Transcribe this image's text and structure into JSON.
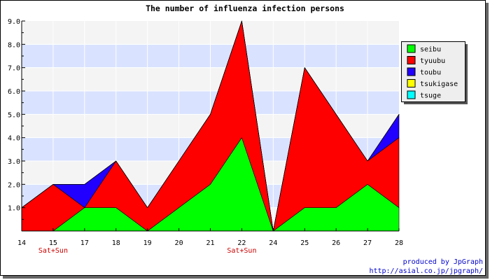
{
  "chart_data": {
    "type": "area",
    "stacked": true,
    "title": "The number of influenza infection persons",
    "x": [
      "14",
      "15",
      "17",
      "18",
      "19",
      "20",
      "21",
      "22",
      "24",
      "25",
      "26",
      "27",
      "28"
    ],
    "weekend_labels": [
      {
        "x": "15",
        "text": "Sat+Sun"
      },
      {
        "x": "22",
        "text": "Sat+Sun"
      }
    ],
    "ylim": [
      0,
      9
    ],
    "yticks": [
      "1.0",
      "2.0",
      "3.0",
      "4.0",
      "5.0",
      "6.0",
      "7.0",
      "8.0",
      "9.0"
    ],
    "grid": true,
    "legend_position": "right",
    "series": [
      {
        "name": "seibu",
        "color": "#00ff00",
        "values": [
          0,
          0,
          1,
          1,
          0,
          1,
          2,
          4,
          0,
          1,
          1,
          2,
          1
        ]
      },
      {
        "name": "tyuubu",
        "color": "#ff0000",
        "values": [
          1,
          2,
          0,
          2,
          1,
          2,
          3,
          5,
          0,
          6,
          4,
          1,
          3
        ]
      },
      {
        "name": "toubu",
        "color": "#2200ff",
        "values": [
          0,
          0,
          1,
          0,
          0,
          0,
          0,
          0,
          0,
          0,
          0,
          0,
          1
        ]
      },
      {
        "name": "tsukigase",
        "color": "#ffff00",
        "values": [
          0,
          0,
          0,
          0,
          0,
          0,
          0,
          0,
          0,
          0,
          0,
          0,
          0
        ]
      },
      {
        "name": "tsuge",
        "color": "#00ffff",
        "values": [
          0,
          0,
          0,
          0,
          0,
          0,
          0,
          0,
          0,
          0,
          0,
          0,
          0
        ]
      }
    ]
  },
  "credits": {
    "line1": "produced by JpGraph",
    "line2": "http://asial.co.jp/jpgraph/"
  }
}
